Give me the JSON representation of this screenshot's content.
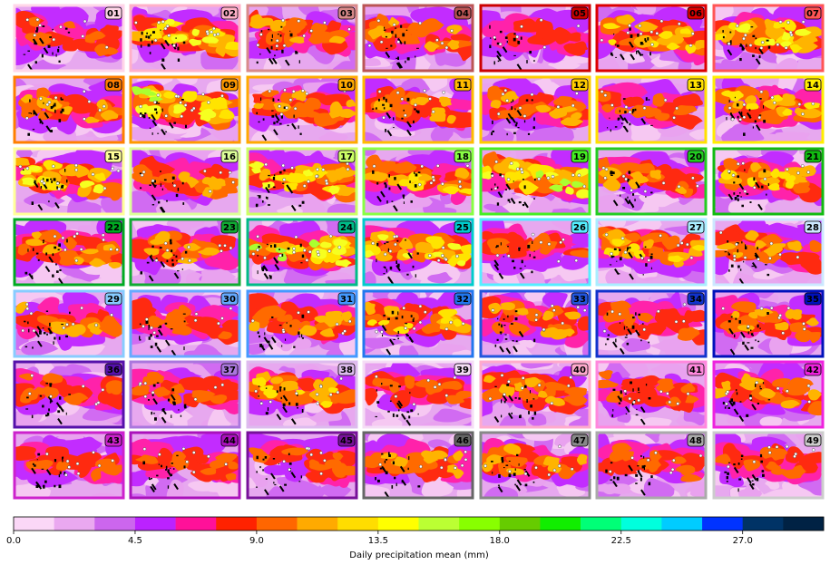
{
  "chart_data": {
    "type": "heatmap",
    "panel_count": 49,
    "grid_layout": "7 rows x 7 columns",
    "panels": [
      {
        "label": "01",
        "frame_color": "#ffd6e8",
        "label_bg": "#ffd6e8",
        "intensity": 0.4
      },
      {
        "label": "02",
        "frame_color": "#ffb0c8",
        "label_bg": "#ffb0c8",
        "intensity": 0.78
      },
      {
        "label": "03",
        "frame_color": "#d98a8a",
        "label_bg": "#d98a8a",
        "intensity": 0.55
      },
      {
        "label": "04",
        "frame_color": "#bb5555",
        "label_bg": "#bb5555",
        "intensity": 0.5
      },
      {
        "label": "05",
        "frame_color": "#cc0000",
        "label_bg": "#cc0000",
        "intensity": 0.3
      },
      {
        "label": "06",
        "frame_color": "#dd0000",
        "label_bg": "#dd0000",
        "intensity": 0.62
      },
      {
        "label": "07",
        "frame_color": "#ff5555",
        "label_bg": "#ff5555",
        "intensity": 0.8
      },
      {
        "label": "08",
        "frame_color": "#ff7f00",
        "label_bg": "#ff7f00",
        "intensity": 0.5
      },
      {
        "label": "09",
        "frame_color": "#ff9900",
        "label_bg": "#ff9900",
        "intensity": 0.85
      },
      {
        "label": "10",
        "frame_color": "#ffaa00",
        "label_bg": "#ffaa00",
        "intensity": 0.55
      },
      {
        "label": "11",
        "frame_color": "#ffbb00",
        "label_bg": "#ffbb00",
        "intensity": 0.5
      },
      {
        "label": "12",
        "frame_color": "#ffcc00",
        "label_bg": "#ffcc00",
        "intensity": 0.52
      },
      {
        "label": "13",
        "frame_color": "#ffe000",
        "label_bg": "#ffe000",
        "intensity": 0.4
      },
      {
        "label": "14",
        "frame_color": "#ffee00",
        "label_bg": "#ffee00",
        "intensity": 0.62
      },
      {
        "label": "15",
        "frame_color": "#ffff99",
        "label_bg": "#ffff99",
        "intensity": 0.7
      },
      {
        "label": "16",
        "frame_color": "#ddff99",
        "label_bg": "#ddff99",
        "intensity": 0.45
      },
      {
        "label": "17",
        "frame_color": "#ccff66",
        "label_bg": "#ccff66",
        "intensity": 0.75
      },
      {
        "label": "18",
        "frame_color": "#88ff44",
        "label_bg": "#88ff44",
        "intensity": 0.6
      },
      {
        "label": "19",
        "frame_color": "#44ee22",
        "label_bg": "#44ee22",
        "intensity": 0.88
      },
      {
        "label": "20",
        "frame_color": "#22cc22",
        "label_bg": "#22cc22",
        "intensity": 0.55
      },
      {
        "label": "21",
        "frame_color": "#11bb11",
        "label_bg": "#11bb11",
        "intensity": 0.58
      },
      {
        "label": "22",
        "frame_color": "#00aa22",
        "label_bg": "#00aa22",
        "intensity": 0.55
      },
      {
        "label": "23",
        "frame_color": "#11aa33",
        "label_bg": "#11aa33",
        "intensity": 0.5
      },
      {
        "label": "24",
        "frame_color": "#00bb88",
        "label_bg": "#00bb88",
        "intensity": 0.9
      },
      {
        "label": "25",
        "frame_color": "#00cccc",
        "label_bg": "#00cccc",
        "intensity": 0.72
      },
      {
        "label": "26",
        "frame_color": "#55eeff",
        "label_bg": "#55eeff",
        "intensity": 0.42
      },
      {
        "label": "27",
        "frame_color": "#aaeeff",
        "label_bg": "#aaeeff",
        "intensity": 0.6
      },
      {
        "label": "28",
        "frame_color": "#cce8ff",
        "label_bg": "#cce8ff",
        "intensity": 0.48
      },
      {
        "label": "29",
        "frame_color": "#88ccff",
        "label_bg": "#88ccff",
        "intensity": 0.55
      },
      {
        "label": "30",
        "frame_color": "#66aaff",
        "label_bg": "#66aaff",
        "intensity": 0.42
      },
      {
        "label": "31",
        "frame_color": "#4499ff",
        "label_bg": "#4499ff",
        "intensity": 0.45
      },
      {
        "label": "32",
        "frame_color": "#2277ee",
        "label_bg": "#2277ee",
        "intensity": 0.6
      },
      {
        "label": "33",
        "frame_color": "#2255dd",
        "label_bg": "#2255dd",
        "intensity": 0.5
      },
      {
        "label": "34",
        "frame_color": "#1133cc",
        "label_bg": "#1133cc",
        "intensity": 0.38
      },
      {
        "label": "35",
        "frame_color": "#0011bb",
        "label_bg": "#0011bb",
        "intensity": 0.48
      },
      {
        "label": "36",
        "frame_color": "#5511aa",
        "label_bg": "#5511aa",
        "intensity": 0.32
      },
      {
        "label": "37",
        "frame_color": "#aa77dd",
        "label_bg": "#aa77dd",
        "intensity": 0.35
      },
      {
        "label": "38",
        "frame_color": "#ddbbee",
        "label_bg": "#ddbbee",
        "intensity": 0.58
      },
      {
        "label": "39",
        "frame_color": "#f5ddf5",
        "label_bg": "#f5ddf5",
        "intensity": 0.35
      },
      {
        "label": "40",
        "frame_color": "#ffaacc",
        "label_bg": "#ffaacc",
        "intensity": 0.48
      },
      {
        "label": "41",
        "frame_color": "#ff88dd",
        "label_bg": "#ff88dd",
        "intensity": 0.4
      },
      {
        "label": "42",
        "frame_color": "#ee22dd",
        "label_bg": "#ee22dd",
        "intensity": 0.45
      },
      {
        "label": "43",
        "frame_color": "#cc22cc",
        "label_bg": "#cc22cc",
        "intensity": 0.4
      },
      {
        "label": "44",
        "frame_color": "#aa11bb",
        "label_bg": "#aa11bb",
        "intensity": 0.38
      },
      {
        "label": "45",
        "frame_color": "#771199",
        "label_bg": "#771199",
        "intensity": 0.38
      },
      {
        "label": "46",
        "frame_color": "#666666",
        "label_bg": "#666666",
        "intensity": 0.45
      },
      {
        "label": "47",
        "frame_color": "#888888",
        "label_bg": "#888888",
        "intensity": 0.45
      },
      {
        "label": "48",
        "frame_color": "#aaaaaa",
        "label_bg": "#aaaaaa",
        "intensity": 0.38
      },
      {
        "label": "49",
        "frame_color": "#cccccc",
        "label_bg": "#cccccc",
        "intensity": 0.42
      }
    ],
    "colorbar": {
      "label": "Daily precipitation mean (mm)",
      "min": 0.0,
      "max": 30.0,
      "ticks": [
        0.0,
        4.5,
        9.0,
        13.5,
        18.0,
        22.5,
        27.0
      ],
      "tick_labels": [
        "0.0",
        "4.5",
        "9.0",
        "13.5",
        "18.0",
        "22.5",
        "27.0"
      ],
      "colors": [
        "#fbd7f7",
        "#eaa8f0",
        "#cc66ee",
        "#bb22ff",
        "#ff1199",
        "#ff2200",
        "#ff6600",
        "#ffaa00",
        "#ffdd00",
        "#ffff00",
        "#bbff33",
        "#88ff00",
        "#66cc00",
        "#11ee00",
        "#00ff77",
        "#00ffdd",
        "#00ccff",
        "#0033ff",
        "#003366",
        "#002244"
      ]
    }
  }
}
